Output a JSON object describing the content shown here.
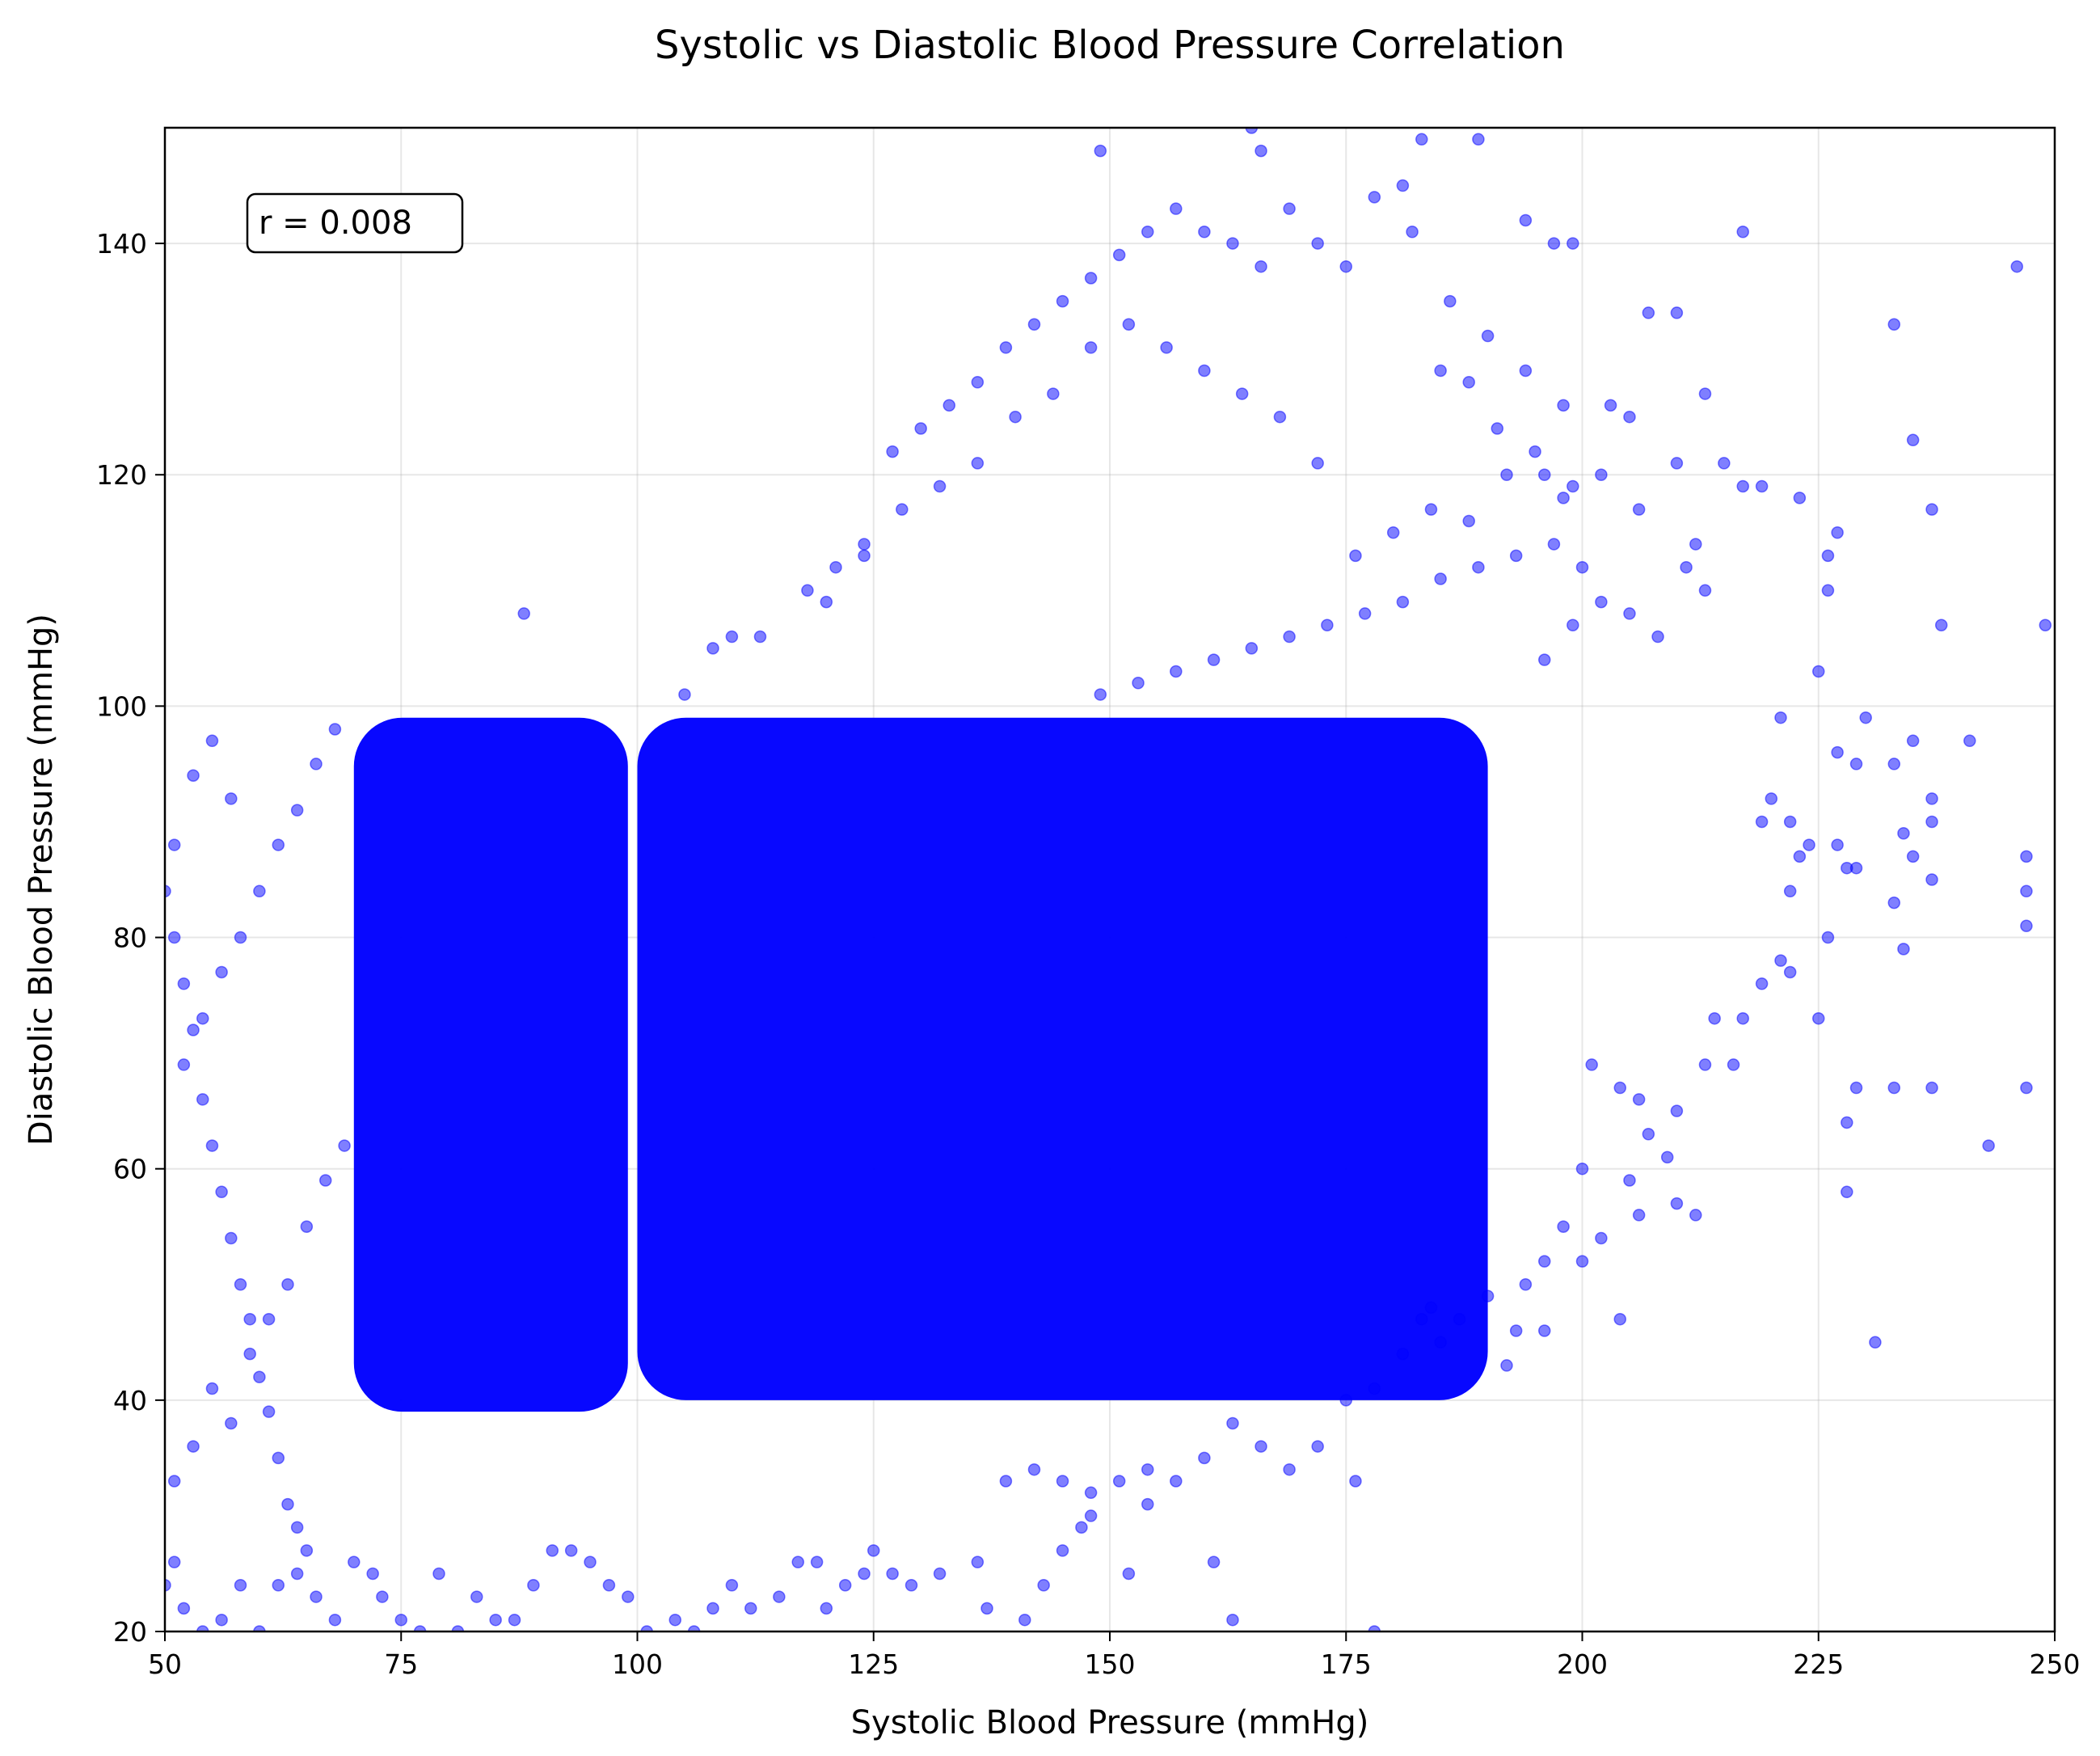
{
  "chart_data": {
    "type": "scatter",
    "title": "Systolic vs Diastolic Blood Pressure Correlation",
    "xlabel": "Systolic Blood Pressure (mmHg)",
    "ylabel": "Diastolic Blood Pressure (mmHg)",
    "xlim": [
      50,
      250
    ],
    "ylim": [
      20,
      150
    ],
    "xticks": [
      50,
      75,
      100,
      125,
      150,
      175,
      200,
      225,
      250
    ],
    "yticks": [
      20,
      40,
      60,
      80,
      100,
      120,
      140
    ],
    "xtick_labels": [
      "50",
      "75",
      "100",
      "125",
      "150",
      "175",
      "200",
      "225",
      "250"
    ],
    "ytick_labels": [
      "20",
      "40",
      "60",
      "80",
      "100",
      "120",
      "140"
    ],
    "grid": true,
    "marker_color": "#0000ff",
    "marker_alpha": 0.5,
    "annotation": "r = 0.008",
    "annotation_placement": "top-left",
    "dense_regions": [
      {
        "x_range": [
          70,
          99
        ],
        "y_range": [
          39,
          99
        ]
      },
      {
        "x_range": [
          100,
          190
        ],
        "y_range": [
          40,
          99
        ]
      }
    ],
    "scattered_points": [
      [
        88,
        108
      ],
      [
        149,
        148
      ],
      [
        165,
        150
      ],
      [
        166,
        148
      ],
      [
        183,
        149
      ],
      [
        189,
        149
      ],
      [
        217,
        141
      ],
      [
        197,
        140
      ],
      [
        199,
        140
      ],
      [
        194,
        142
      ],
      [
        181,
        145
      ],
      [
        246,
        138
      ],
      [
        233,
        133
      ],
      [
        235,
        123
      ],
      [
        237,
        117
      ],
      [
        238,
        107
      ],
      [
        249,
        107
      ],
      [
        210,
        134
      ],
      [
        207,
        134
      ],
      [
        203,
        126
      ],
      [
        205,
        125
      ],
      [
        213,
        127
      ],
      [
        210,
        121
      ],
      [
        215,
        121
      ],
      [
        217,
        119
      ],
      [
        219,
        119
      ],
      [
        223,
        118
      ],
      [
        219,
        90
      ],
      [
        220,
        92
      ],
      [
        222,
        90
      ],
      [
        221,
        99
      ],
      [
        226,
        113
      ],
      [
        227,
        115
      ],
      [
        226,
        110
      ],
      [
        225,
        103
      ],
      [
        241,
        97
      ],
      [
        235,
        97
      ],
      [
        233,
        95
      ],
      [
        237,
        92
      ],
      [
        237,
        90
      ],
      [
        234,
        89
      ],
      [
        235,
        87
      ],
      [
        237,
        85
      ],
      [
        233,
        83
      ],
      [
        234,
        79
      ],
      [
        247,
        87
      ],
      [
        247,
        84
      ],
      [
        247,
        81
      ],
      [
        247,
        67
      ],
      [
        243,
        62
      ],
      [
        231,
        45
      ],
      [
        233,
        67
      ],
      [
        237,
        67
      ],
      [
        229,
        67
      ],
      [
        228,
        64
      ],
      [
        228,
        58
      ],
      [
        225,
        73
      ],
      [
        226,
        80
      ],
      [
        227,
        88
      ],
      [
        228,
        86
      ],
      [
        229,
        86
      ],
      [
        227,
        96
      ],
      [
        229,
        95
      ],
      [
        230,
        99
      ],
      [
        224,
        88
      ],
      [
        223,
        87
      ],
      [
        222,
        84
      ],
      [
        221,
        78
      ],
      [
        222,
        77
      ],
      [
        219,
        76
      ],
      [
        217,
        73
      ],
      [
        216,
        69
      ],
      [
        214,
        73
      ],
      [
        213,
        69
      ],
      [
        212,
        56
      ],
      [
        210,
        65
      ],
      [
        209,
        61
      ],
      [
        210,
        57
      ],
      [
        206,
        56
      ],
      [
        204,
        47
      ],
      [
        192,
        43
      ],
      [
        193,
        46
      ],
      [
        196,
        46
      ],
      [
        183,
        47
      ],
      [
        185,
        45
      ],
      [
        176,
        33
      ],
      [
        178,
        20
      ],
      [
        163,
        21
      ],
      [
        161,
        26
      ],
      [
        152,
        25
      ],
      [
        154,
        31
      ],
      [
        148,
        30
      ],
      [
        147,
        29
      ],
      [
        145,
        27
      ],
      [
        143,
        24
      ],
      [
        141,
        21
      ],
      [
        137,
        22
      ],
      [
        136,
        26
      ],
      [
        132,
        25
      ],
      [
        129,
        24
      ],
      [
        127,
        25
      ],
      [
        125,
        27
      ],
      [
        124,
        25
      ],
      [
        122,
        24
      ],
      [
        120,
        22
      ],
      [
        119,
        26
      ],
      [
        117,
        26
      ],
      [
        115,
        23
      ],
      [
        112,
        22
      ],
      [
        110,
        24
      ],
      [
        108,
        22
      ],
      [
        106,
        20
      ],
      [
        104,
        21
      ],
      [
        101,
        20
      ],
      [
        99,
        23
      ],
      [
        97,
        24
      ],
      [
        95,
        26
      ],
      [
        93,
        27
      ],
      [
        91,
        27
      ],
      [
        89,
        24
      ],
      [
        87,
        21
      ],
      [
        85,
        21
      ],
      [
        83,
        23
      ],
      [
        81,
        20
      ],
      [
        79,
        25
      ],
      [
        77,
        20
      ],
      [
        75,
        21
      ],
      [
        73,
        23
      ],
      [
        72,
        25
      ],
      [
        70,
        26
      ],
      [
        68,
        21
      ],
      [
        66,
        23
      ],
      [
        65,
        27
      ],
      [
        64,
        25
      ],
      [
        62,
        24
      ],
      [
        60,
        20
      ],
      [
        58,
        24
      ],
      [
        56,
        21
      ],
      [
        54,
        20
      ],
      [
        52,
        22
      ],
      [
        51,
        26
      ],
      [
        50,
        24
      ],
      [
        51,
        33
      ],
      [
        53,
        36
      ],
      [
        55,
        41
      ],
      [
        57,
        38
      ],
      [
        59,
        44
      ],
      [
        61,
        47
      ],
      [
        63,
        50
      ],
      [
        65,
        55
      ],
      [
        67,
        59
      ],
      [
        69,
        62
      ],
      [
        52,
        69
      ],
      [
        54,
        73
      ],
      [
        56,
        77
      ],
      [
        58,
        80
      ],
      [
        60,
        84
      ],
      [
        62,
        88
      ],
      [
        64,
        91
      ],
      [
        66,
        95
      ],
      [
        68,
        98
      ],
      [
        53,
        94
      ],
      [
        55,
        97
      ],
      [
        57,
        92
      ],
      [
        51,
        88
      ],
      [
        50,
        84
      ],
      [
        51,
        80
      ],
      [
        52,
        76
      ],
      [
        53,
        72
      ],
      [
        54,
        66
      ],
      [
        55,
        62
      ],
      [
        56,
        58
      ],
      [
        57,
        54
      ],
      [
        58,
        50
      ],
      [
        59,
        47
      ],
      [
        60,
        42
      ],
      [
        61,
        39
      ],
      [
        62,
        35
      ],
      [
        63,
        31
      ],
      [
        64,
        29
      ],
      [
        105,
        101
      ],
      [
        108,
        105
      ],
      [
        110,
        106
      ],
      [
        113,
        106
      ],
      [
        118,
        110
      ],
      [
        121,
        112
      ],
      [
        124,
        114
      ],
      [
        127,
        122
      ],
      [
        130,
        124
      ],
      [
        133,
        126
      ],
      [
        136,
        128
      ],
      [
        139,
        131
      ],
      [
        142,
        133
      ],
      [
        145,
        135
      ],
      [
        148,
        137
      ],
      [
        151,
        139
      ],
      [
        154,
        141
      ],
      [
        157,
        143
      ],
      [
        160,
        141
      ],
      [
        163,
        140
      ],
      [
        166,
        138
      ],
      [
        169,
        143
      ],
      [
        172,
        140
      ],
      [
        175,
        138
      ],
      [
        178,
        144
      ],
      [
        182,
        141
      ],
      [
        186,
        135
      ],
      [
        190,
        132
      ],
      [
        194,
        129
      ],
      [
        198,
        126
      ],
      [
        202,
        120
      ],
      [
        206,
        117
      ],
      [
        185,
        129
      ],
      [
        188,
        128
      ],
      [
        191,
        124
      ],
      [
        195,
        122
      ],
      [
        199,
        119
      ],
      [
        197,
        114
      ],
      [
        193,
        113
      ],
      [
        189,
        112
      ],
      [
        185,
        111
      ],
      [
        181,
        109
      ],
      [
        177,
        108
      ],
      [
        173,
        107
      ],
      [
        169,
        106
      ],
      [
        165,
        105
      ],
      [
        161,
        104
      ],
      [
        157,
        103
      ],
      [
        153,
        102
      ],
      [
        149,
        101
      ],
      [
        196,
        104
      ],
      [
        199,
        107
      ],
      [
        202,
        109
      ],
      [
        205,
        108
      ],
      [
        208,
        106
      ],
      [
        211,
        112
      ],
      [
        213,
        110
      ],
      [
        212,
        114
      ],
      [
        200,
        112
      ],
      [
        198,
        118
      ],
      [
        196,
        120
      ],
      [
        192,
        120
      ],
      [
        188,
        116
      ],
      [
        184,
        117
      ],
      [
        180,
        115
      ],
      [
        176,
        113
      ],
      [
        172,
        121
      ],
      [
        168,
        125
      ],
      [
        164,
        127
      ],
      [
        160,
        129
      ],
      [
        156,
        131
      ],
      [
        152,
        133
      ],
      [
        148,
        131
      ],
      [
        144,
        127
      ],
      [
        140,
        125
      ],
      [
        136,
        121
      ],
      [
        132,
        119
      ],
      [
        128,
        117
      ],
      [
        124,
        113
      ],
      [
        120,
        109
      ],
      [
        200,
        60
      ],
      [
        198,
        55
      ],
      [
        196,
        52
      ],
      [
        194,
        50
      ],
      [
        190,
        49
      ],
      [
        187,
        47
      ],
      [
        184,
        48
      ],
      [
        181,
        44
      ],
      [
        178,
        41
      ],
      [
        175,
        40
      ],
      [
        172,
        36
      ],
      [
        169,
        34
      ],
      [
        166,
        36
      ],
      [
        163,
        38
      ],
      [
        160,
        35
      ],
      [
        157,
        33
      ],
      [
        154,
        34
      ],
      [
        151,
        33
      ],
      [
        148,
        32
      ],
      [
        145,
        33
      ],
      [
        142,
        34
      ],
      [
        139,
        33
      ],
      [
        200,
        52
      ],
      [
        202,
        54
      ],
      [
        205,
        59
      ],
      [
        207,
        63
      ],
      [
        206,
        66
      ],
      [
        204,
        67
      ],
      [
        201,
        69
      ]
    ]
  }
}
